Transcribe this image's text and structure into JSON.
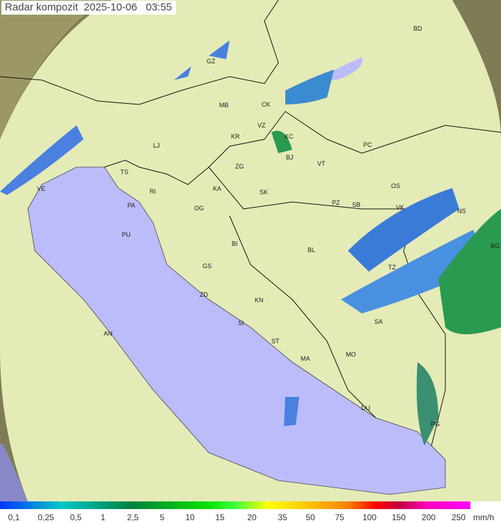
{
  "title": "Radar kompozit  2025-10-06   03:55",
  "colors": {
    "sea": "#bcbcfa",
    "land": "#e6edb8",
    "outside": "#8a8a5a",
    "echo_blue": "#3b7bd8",
    "echo_green": "#2a9a50"
  },
  "cities": [
    "GZ",
    "BD",
    "MB",
    "CK",
    "VZ",
    "KC",
    "KR",
    "LJ",
    "ZG",
    "BJ",
    "VT",
    "PC",
    "TS",
    "VE",
    "RI",
    "KA",
    "SK",
    "OS",
    "PA",
    "OG",
    "PZ",
    "SB",
    "VK",
    "NS",
    "PU",
    "BI",
    "BL",
    "BG",
    "GS",
    "TZ",
    "ZD",
    "KN",
    "SA",
    "AN",
    "SI",
    "ST",
    "MO",
    "MA",
    "DU",
    "PG"
  ],
  "legend": {
    "ticks": [
      "0,1",
      "0,25",
      "0,5",
      "1",
      "2,5",
      "5",
      "10",
      "15",
      "20",
      "35",
      "50",
      "75",
      "100",
      "150",
      "200",
      "250"
    ],
    "unit": "mm/h"
  }
}
